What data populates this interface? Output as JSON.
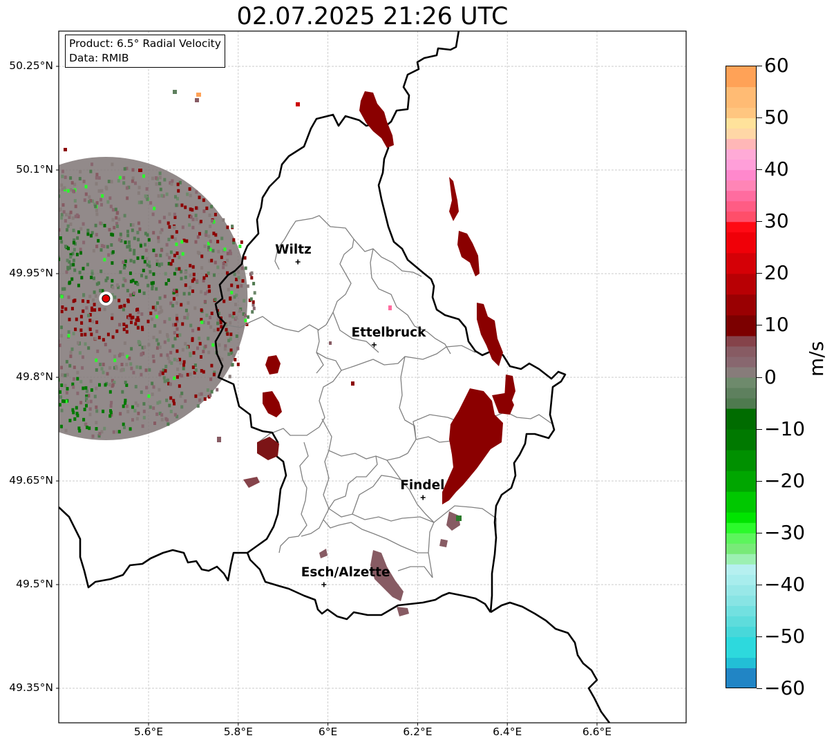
{
  "title": "02.07.2025 21:26 UTC",
  "info": {
    "product": "Product: 6.5° Radial Velocity",
    "data_source": "Data: RMIB"
  },
  "colorbar": {
    "unit": "m/s",
    "min": -60,
    "max": 60,
    "tick_labels": [
      "60",
      "50",
      "40",
      "30",
      "20",
      "10",
      "0",
      "−10",
      "−20",
      "−30",
      "−40",
      "−50",
      "−60"
    ],
    "tick_values": [
      60,
      50,
      40,
      30,
      20,
      10,
      0,
      -10,
      -20,
      -30,
      -40,
      -50,
      -60
    ],
    "segments": [
      {
        "from": 56,
        "to": 60,
        "color": "#ffa257"
      },
      {
        "from": 52,
        "to": 56,
        "color": "#ffbb74"
      },
      {
        "from": 50,
        "to": 52,
        "color": "#ffc680"
      },
      {
        "from": 48,
        "to": 50,
        "color": "#ffe29b"
      },
      {
        "from": 46,
        "to": 48,
        "color": "#ffd7a6"
      },
      {
        "from": 44,
        "to": 46,
        "color": "#ffb7b7"
      },
      {
        "from": 42,
        "to": 44,
        "color": "#ffaad6"
      },
      {
        "from": 40,
        "to": 42,
        "color": "#ff9fd9"
      },
      {
        "from": 38,
        "to": 40,
        "color": "#ff88cc"
      },
      {
        "from": 36,
        "to": 38,
        "color": "#ff85b6"
      },
      {
        "from": 34,
        "to": 36,
        "color": "#ff6c9f"
      },
      {
        "from": 32,
        "to": 34,
        "color": "#ff5c84"
      },
      {
        "from": 30,
        "to": 32,
        "color": "#ff4e6a"
      },
      {
        "from": 28,
        "to": 30,
        "color": "#ff0a14"
      },
      {
        "from": 24,
        "to": 28,
        "color": "#f00008"
      },
      {
        "from": 20,
        "to": 24,
        "color": "#d50006"
      },
      {
        "from": 16,
        "to": 20,
        "color": "#b80004"
      },
      {
        "from": 12,
        "to": 16,
        "color": "#9a0002"
      },
      {
        "from": 8,
        "to": 12,
        "color": "#7c0000"
      },
      {
        "from": 6,
        "to": 8,
        "color": "#85434a"
      },
      {
        "from": 4,
        "to": 6,
        "color": "#875b63"
      },
      {
        "from": 2,
        "to": 4,
        "color": "#88676f"
      },
      {
        "from": 0,
        "to": 2,
        "color": "#877c7a"
      },
      {
        "from": -2,
        "to": 0,
        "color": "#6e8a6c"
      },
      {
        "from": -4,
        "to": -2,
        "color": "#5e805e"
      },
      {
        "from": -6,
        "to": -4,
        "color": "#4f7a4f"
      },
      {
        "from": -10,
        "to": -6,
        "color": "#006c00"
      },
      {
        "from": -14,
        "to": -10,
        "color": "#007900"
      },
      {
        "from": -18,
        "to": -14,
        "color": "#009000"
      },
      {
        "from": -22,
        "to": -18,
        "color": "#00a600"
      },
      {
        "from": -26,
        "to": -22,
        "color": "#00c800"
      },
      {
        "from": -28,
        "to": -26,
        "color": "#00e400"
      },
      {
        "from": -30,
        "to": -28,
        "color": "#2bfa2b"
      },
      {
        "from": -32,
        "to": -30,
        "color": "#5cf55c"
      },
      {
        "from": -34,
        "to": -32,
        "color": "#78ea78"
      },
      {
        "from": -36,
        "to": -34,
        "color": "#9cf0b2"
      },
      {
        "from": -38,
        "to": -36,
        "color": "#b6f0f0"
      },
      {
        "from": -40,
        "to": -38,
        "color": "#a8eded"
      },
      {
        "from": -42,
        "to": -40,
        "color": "#98e8e8"
      },
      {
        "from": -44,
        "to": -42,
        "color": "#88e4e4"
      },
      {
        "from": -46,
        "to": -44,
        "color": "#72e0e0"
      },
      {
        "from": -48,
        "to": -46,
        "color": "#5edcdc"
      },
      {
        "from": -50,
        "to": -48,
        "color": "#48d8da"
      },
      {
        "from": -54,
        "to": -50,
        "color": "#2dd9dd"
      },
      {
        "from": -56,
        "to": -54,
        "color": "#22bfd6"
      },
      {
        "from": -60,
        "to": -56,
        "color": "#2185c5"
      }
    ]
  },
  "axes": {
    "lon_range": [
      5.4,
      6.8
    ],
    "lat_range": [
      49.3,
      50.3
    ],
    "lon_ticks": [
      {
        "value": 5.6,
        "label": "5.6°E"
      },
      {
        "value": 5.8,
        "label": "5.8°E"
      },
      {
        "value": 6.0,
        "label": "6°E"
      },
      {
        "value": 6.2,
        "label": "6.2°E"
      },
      {
        "value": 6.4,
        "label": "6.4°E"
      },
      {
        "value": 6.6,
        "label": "6.6°E"
      }
    ],
    "lat_ticks": [
      {
        "value": 50.25,
        "label": "50.25°N"
      },
      {
        "value": 50.1,
        "label": "50.1°N"
      },
      {
        "value": 49.95,
        "label": "49.95°N"
      },
      {
        "value": 49.8,
        "label": "49.8°N"
      },
      {
        "value": 49.65,
        "label": "49.65°N"
      },
      {
        "value": 49.5,
        "label": "49.5°N"
      },
      {
        "value": 49.35,
        "label": "49.35°N"
      }
    ],
    "grid": true
  },
  "radar_site": {
    "lon": 5.505,
    "lat": 49.914
  },
  "cities": [
    {
      "name": "Wiltz",
      "lon": 5.933,
      "lat": 49.967
    },
    {
      "name": "Ettelbruck",
      "lon": 6.103,
      "lat": 49.847
    },
    {
      "name": "Findel",
      "lon": 6.212,
      "lat": 49.626
    },
    {
      "name": "Esch/Alzette",
      "lon": 5.991,
      "lat": 49.5
    }
  ],
  "colors": {
    "border": "#000000",
    "canton_lines": "#808080",
    "grid": "#bbbbbb",
    "radar_site": "#e00000"
  }
}
